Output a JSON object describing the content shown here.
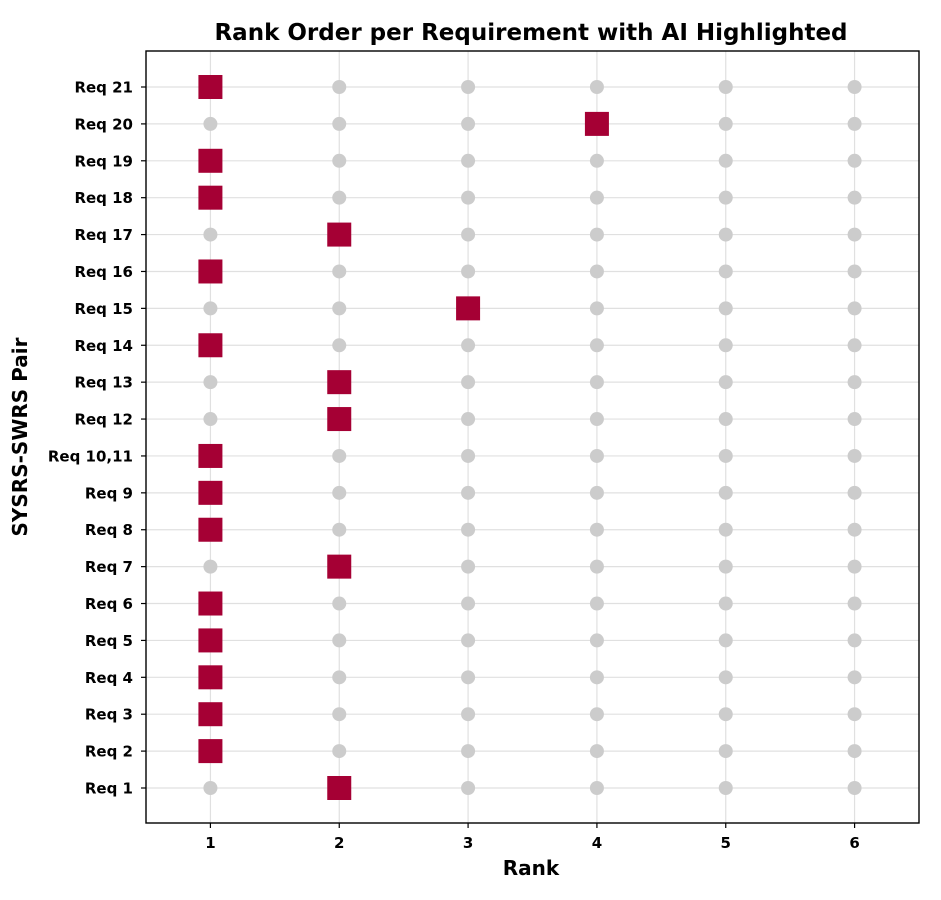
{
  "chart_data": {
    "type": "scatter",
    "title": "Rank Order per Requirement with AI Highlighted",
    "xlabel": "Rank",
    "ylabel": "SYSRS-SWRS Pair",
    "x_ticks": [
      1,
      2,
      3,
      4,
      5,
      6
    ],
    "xlim": [
      0.5,
      6.5
    ],
    "grid": true,
    "categories": [
      "Req 1",
      "Req 2",
      "Req 3",
      "Req 4",
      "Req 5",
      "Req 6",
      "Req 7",
      "Req 8",
      "Req 9",
      "Req 10,11",
      "Req 12",
      "Req 13",
      "Req 14",
      "Req 15",
      "Req 16",
      "Req 17",
      "Req 18",
      "Req 19",
      "Req 20",
      "Req 21"
    ],
    "ai_rank": [
      2,
      1,
      1,
      1,
      1,
      1,
      2,
      1,
      1,
      1,
      2,
      2,
      1,
      3,
      1,
      2,
      1,
      1,
      4,
      1
    ],
    "colors": {
      "ai_marker": "#a50034",
      "other_marker": "#cccccc",
      "grid": "#e0e0e0"
    }
  }
}
